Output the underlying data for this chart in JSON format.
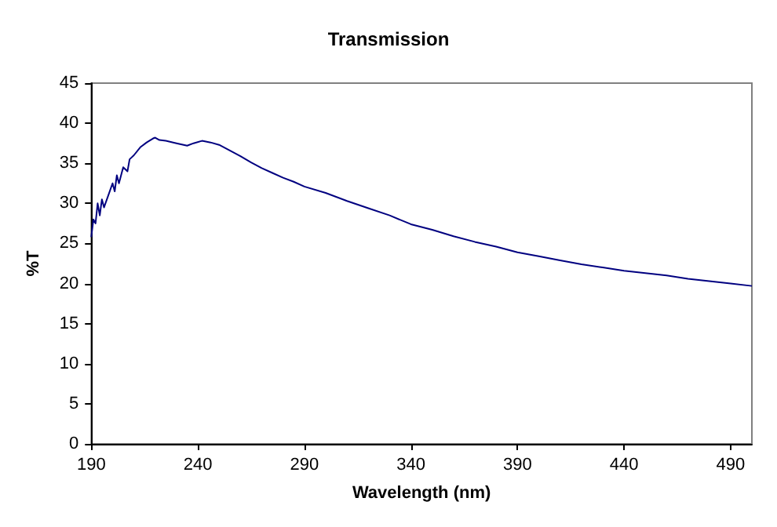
{
  "chart_data": {
    "type": "line",
    "title": "Transmission",
    "xlabel": "Wavelength (nm)",
    "ylabel": "%T",
    "x": [
      190,
      191,
      192,
      193,
      194,
      195,
      196,
      198,
      200,
      201,
      202,
      203,
      205,
      207,
      208,
      210,
      213,
      216,
      219,
      220,
      222,
      225,
      230,
      235,
      238,
      242,
      246,
      250,
      255,
      260,
      265,
      270,
      275,
      280,
      285,
      290,
      300,
      310,
      320,
      330,
      340,
      350,
      360,
      370,
      380,
      390,
      400,
      410,
      420,
      430,
      440,
      450,
      460,
      470,
      480,
      490,
      500
    ],
    "series": [
      {
        "color": "#000080",
        "values": [
          25.8,
          28,
          27.5,
          30,
          28.5,
          30.5,
          29.5,
          31,
          32.5,
          31.5,
          33.5,
          32.5,
          34.5,
          34,
          35.5,
          36,
          37,
          37.6,
          38.1,
          38.2,
          37.9,
          37.8,
          37.5,
          37.2,
          37.5,
          37.8,
          37.6,
          37.3,
          36.6,
          35.9,
          35.1,
          34.4,
          33.8,
          33.2,
          32.7,
          32.1,
          31.3,
          30.3,
          29.4,
          28.5,
          27.4,
          26.7,
          25.9,
          25.2,
          24.6,
          23.9,
          23.4,
          22.9,
          22.4,
          22,
          21.6,
          21.3,
          21,
          20.6,
          20.3,
          20,
          19.7
        ]
      }
    ],
    "xlim": [
      190,
      500
    ],
    "xticks": [
      190,
      240,
      290,
      340,
      390,
      440,
      490
    ],
    "ylim": [
      0,
      45
    ],
    "yticks": [
      0,
      5,
      10,
      15,
      20,
      25,
      30,
      35,
      40,
      45
    ],
    "grid": false,
    "marker": "none",
    "line_style": "solid"
  }
}
